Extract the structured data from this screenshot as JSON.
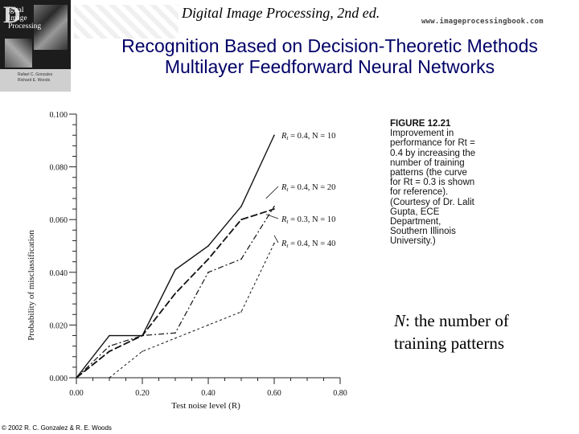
{
  "header": {
    "book_title": "Digital Image Processing, 2nd ed.",
    "website": "www.imageprocessingbook.com",
    "cover": {
      "big_letter": "D",
      "title_line1": "igital",
      "title_line2": "Image",
      "title_line3": "Processing",
      "authors": "Rafael C. Gonzalez\nRichard E. Woods"
    }
  },
  "slide": {
    "title_line1": "Recognition Based on Decision-Theoretic Methods",
    "title_line2": "Multilayer Feedforward Neural Networks"
  },
  "figure": {
    "label": "FIGURE 12.21",
    "caption": "Improvement in performance for Rt = 0.4 by increasing the number of training patterns (the curve for Rt = 0.3 is shown for reference). (Courtesy of Dr. Lalit Gupta, ECE Department, Southern Illinois University.)"
  },
  "note": {
    "variable": "N",
    "line1_rest": ": the number of",
    "line2": "training patterns"
  },
  "footer": {
    "copyright": "© 2002 R. C. Gonzalez & R. E. Woods"
  },
  "chart_data": {
    "type": "line",
    "title": "",
    "xlabel": "Test noise level (R)",
    "ylabel": "Probability of misclassification",
    "xlim": [
      0.0,
      0.8
    ],
    "ylim": [
      0.0,
      0.1
    ],
    "x_ticks": [
      "0.00",
      "0.20",
      "0.40",
      "0.60",
      "0.80"
    ],
    "y_ticks": [
      "0.000",
      "0.020",
      "0.040",
      "0.060",
      "0.080",
      "0.100"
    ],
    "grid": false,
    "series": [
      {
        "name": "Rt = 0.4, N = 10",
        "label_prefix": "R",
        "label_sub": "t",
        "label_rest": " = 0.4, N = 10",
        "style": "solid",
        "x": [
          0.0,
          0.1,
          0.2,
          0.3,
          0.4,
          0.5,
          0.6
        ],
        "y": [
          0.0,
          0.016,
          0.016,
          0.041,
          0.05,
          0.065,
          0.092
        ]
      },
      {
        "name": "Rt = 0.4, N = 20",
        "label_prefix": "R",
        "label_sub": "t",
        "label_rest": " = 0.4, N = 20",
        "style": "longdash",
        "x": [
          0.0,
          0.1,
          0.2,
          0.3,
          0.4,
          0.5,
          0.6
        ],
        "y": [
          0.0,
          0.01,
          0.016,
          0.032,
          0.045,
          0.06,
          0.064
        ]
      },
      {
        "name": "Rt = 0.3, N = 10",
        "label_prefix": "R",
        "label_sub": "t",
        "label_rest": " = 0.3, N = 10",
        "style": "dashdot",
        "x": [
          0.0,
          0.1,
          0.2,
          0.3,
          0.4,
          0.5,
          0.6
        ],
        "y": [
          0.0,
          0.012,
          0.016,
          0.017,
          0.04,
          0.045,
          0.065
        ]
      },
      {
        "name": "Rt = 0.4, N = 40",
        "label_prefix": "R",
        "label_sub": "t",
        "label_rest": " = 0.4, N = 40",
        "style": "shortdash",
        "x": [
          0.1,
          0.2,
          0.3,
          0.4,
          0.5,
          0.6
        ],
        "y": [
          0.0,
          0.01,
          0.015,
          0.02,
          0.025,
          0.051
        ]
      }
    ]
  }
}
